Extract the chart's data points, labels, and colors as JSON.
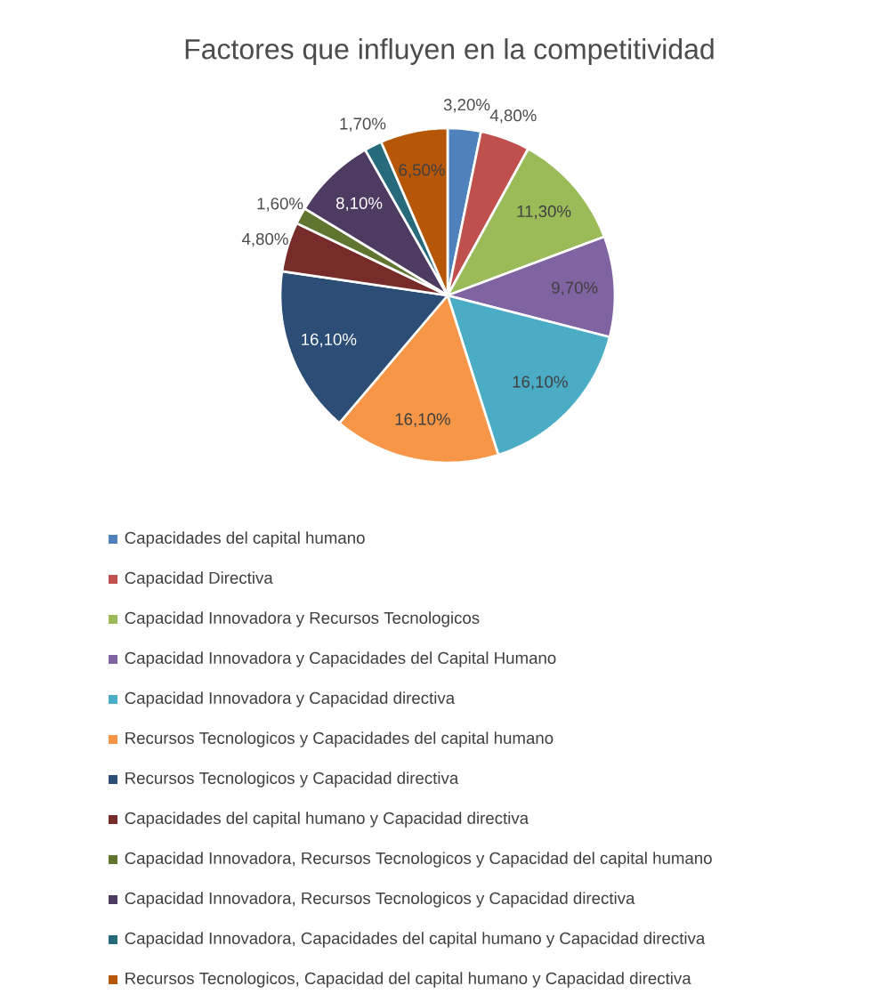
{
  "chart_data": {
    "type": "pie",
    "title": "Factores que influyen en la competitividad",
    "categories": [
      "Capacidades del capital humano",
      "Capacidad Directiva",
      "Capacidad Innovadora y Recursos Tecnologicos",
      "Capacidad Innovadora y Capacidades del Capital Humano",
      "Capacidad Innovadora y Capacidad directiva",
      "Recursos Tecnologicos y Capacidades del capital humano",
      "Recursos Tecnologicos y Capacidad directiva",
      "Capacidades del capital humano y Capacidad directiva",
      "Capacidad Innovadora, Recursos Tecnologicos y Capacidad del capital humano",
      "Capacidad Innovadora, Recursos Tecnologicos y Capacidad directiva",
      "Capacidad Innovadora, Capacidades del capital humano y Capacidad directiva",
      "Recursos Tecnologicos, Capacidad del capital humano y Capacidad directiva"
    ],
    "values": [
      3.2,
      4.8,
      11.3,
      9.7,
      16.1,
      16.1,
      16.1,
      4.8,
      1.6,
      8.1,
      1.7,
      6.5
    ],
    "value_labels": [
      "3,20%",
      "4,80%",
      "11,30%",
      "9,70%",
      "16,10%",
      "16,10%",
      "16,10%",
      "4,80%",
      "1,60%",
      "8,10%",
      "1,70%",
      "6,50%"
    ],
    "colors": [
      "#4f81bd",
      "#c0504d",
      "#9bbb59",
      "#8064a2",
      "#4bacc6",
      "#f79646",
      "#2c4d75",
      "#772c2a",
      "#5f7530",
      "#4d3b62",
      "#276a7c",
      "#b65708"
    ],
    "legend": "bottom"
  }
}
